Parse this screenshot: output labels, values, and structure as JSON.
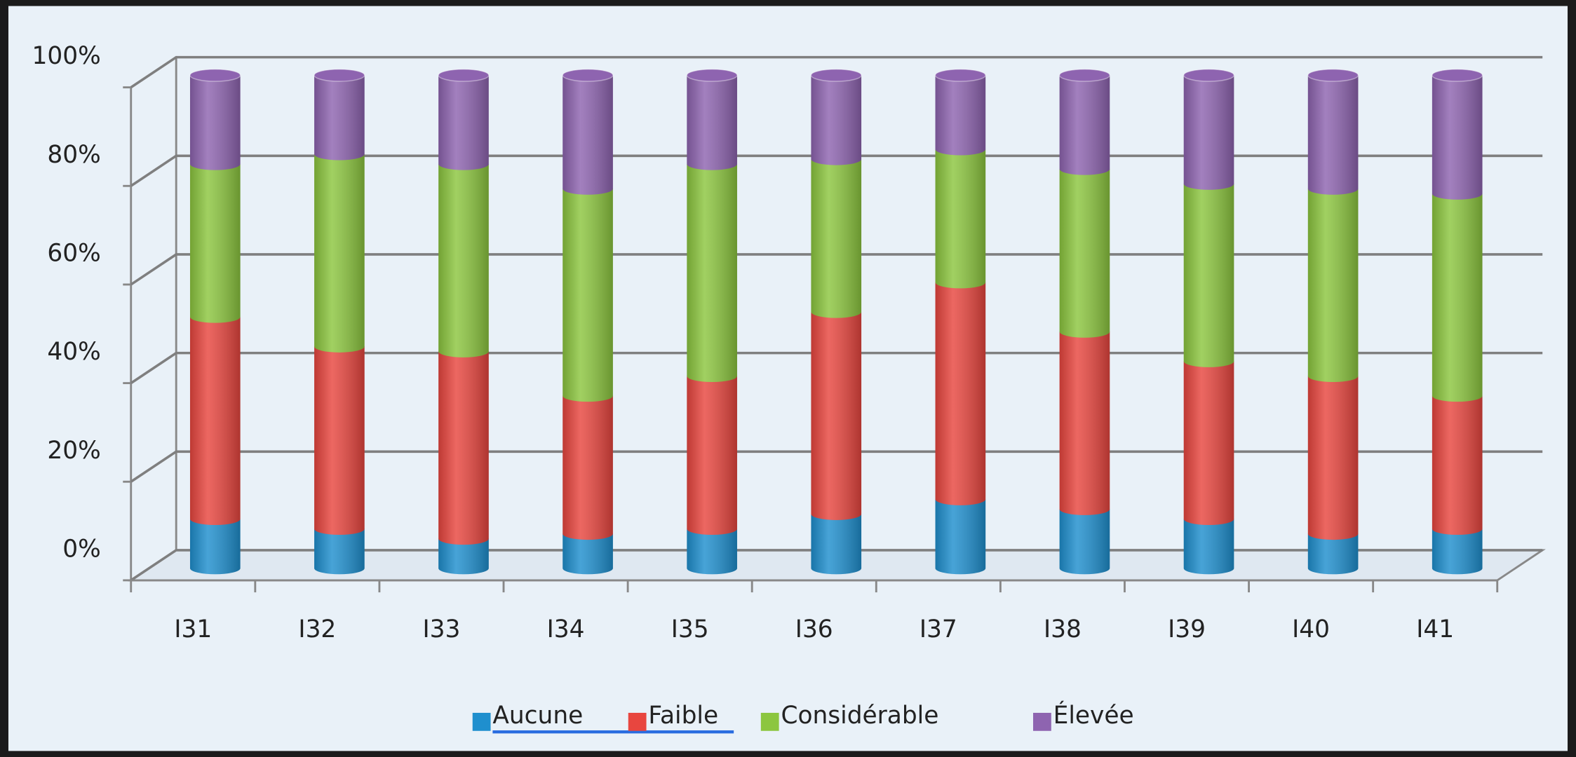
{
  "chart_data": {
    "type": "stacked_bar_3d",
    "categories": [
      "I31",
      "I32",
      "I33",
      "I34",
      "I35",
      "I36",
      "I37",
      "I38",
      "I39",
      "I40",
      "I41"
    ],
    "series": [
      {
        "name": "Aucune",
        "color": "#1f8fce",
        "values": [
          10,
          8,
          6,
          7,
          8,
          11,
          14,
          12,
          10,
          7,
          8
        ]
      },
      {
        "name": "Faible",
        "color": "#e8463f",
        "values": [
          41,
          37,
          38,
          28,
          31,
          41,
          44,
          36,
          32,
          32,
          27
        ]
      },
      {
        "name": "Considérable",
        "color": "#8cc63f",
        "values": [
          31,
          39,
          38,
          42,
          43,
          31,
          27,
          33,
          36,
          38,
          41
        ]
      },
      {
        "name": "Élevée",
        "color": "#8e64b0",
        "values": [
          18,
          16,
          18,
          23,
          18,
          17,
          15,
          19,
          22,
          23,
          24
        ]
      }
    ],
    "ylim": [
      0,
      100
    ],
    "yticks": [
      {
        "value": 0,
        "label": "0%"
      },
      {
        "value": 20,
        "label": "20%"
      },
      {
        "value": 40,
        "label": "40%"
      },
      {
        "value": 60,
        "label": "60%"
      },
      {
        "value": 80,
        "label": "80%"
      },
      {
        "value": 100,
        "label": "100%"
      }
    ],
    "grid": true,
    "legend": "bottom"
  }
}
